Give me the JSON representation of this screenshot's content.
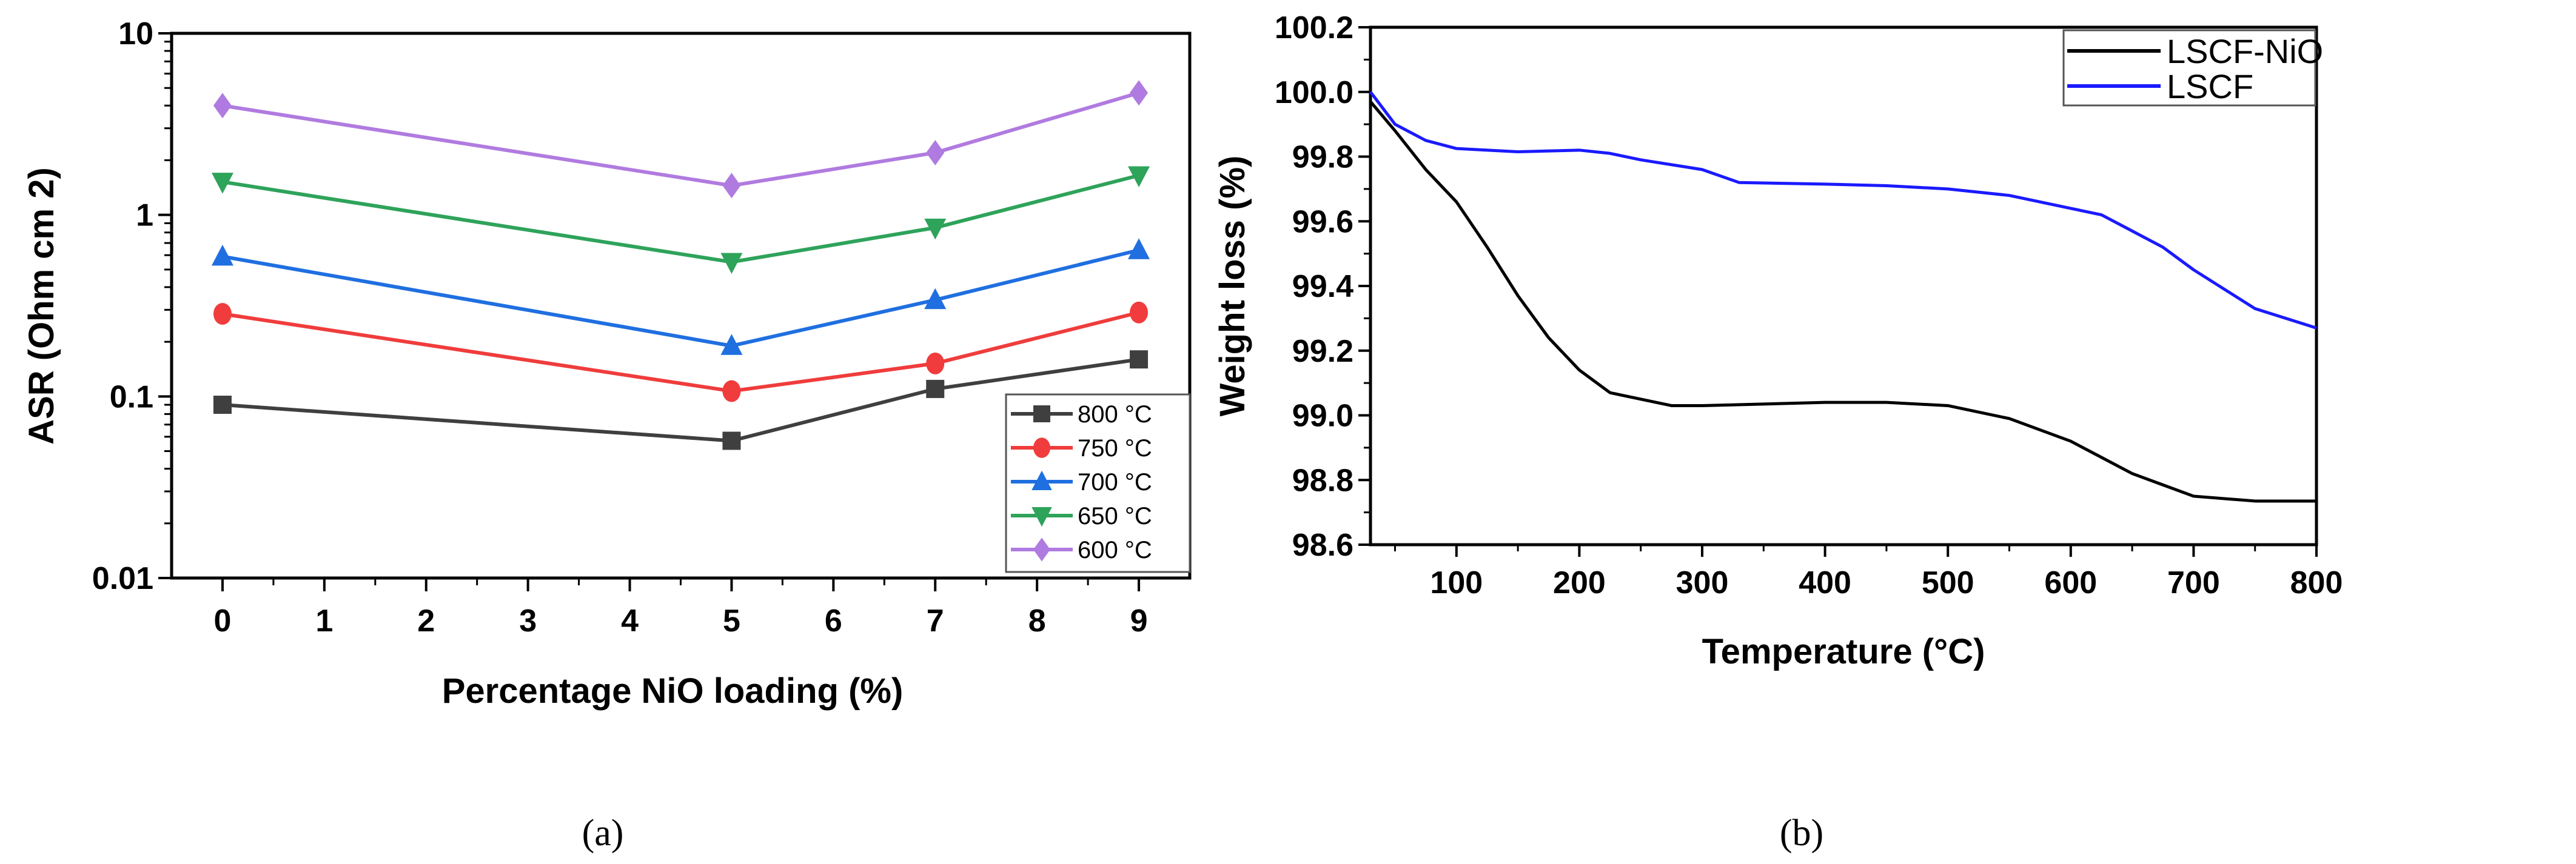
{
  "chart_data": [
    {
      "type": "line",
      "panel_label": "(a)",
      "title": "",
      "xlabel": "Percentage NiO loading (%)",
      "ylabel": "ASR (Ohm cm 2)",
      "yscale": "log",
      "xlim": [
        -0.5,
        9.5
      ],
      "ylim": [
        0.01,
        10
      ],
      "xticks": [
        "0",
        "1",
        "2",
        "3",
        "4",
        "5",
        "6",
        "7",
        "8",
        "9"
      ],
      "yticks": [
        "0.01",
        "0.1",
        "1",
        "10"
      ],
      "legend_position": "bottom-right",
      "x": [
        0,
        5,
        7,
        9
      ],
      "series": [
        {
          "name": "800 °C",
          "color": "#3f3f3f",
          "marker": "square",
          "values": [
            0.09,
            0.057,
            0.11,
            0.16
          ]
        },
        {
          "name": "750 °C",
          "color": "#f03c3c",
          "marker": "circle",
          "values": [
            0.285,
            0.107,
            0.152,
            0.29
          ]
        },
        {
          "name": "700 °C",
          "color": "#1f6fe0",
          "marker": "triangle-up",
          "values": [
            0.59,
            0.19,
            0.34,
            0.64
          ]
        },
        {
          "name": "650 °C",
          "color": "#2ea35a",
          "marker": "triangle-down",
          "values": [
            1.52,
            0.55,
            0.85,
            1.65
          ]
        },
        {
          "name": "600 °C",
          "color": "#b07be0",
          "marker": "diamond",
          "values": [
            4.0,
            1.45,
            2.2,
            4.7
          ]
        }
      ]
    },
    {
      "type": "line",
      "panel_label": "(b)",
      "title": "",
      "xlabel": "Temperature (°C)",
      "ylabel": "Weight loss (%)",
      "xlim": [
        30,
        800
      ],
      "ylim": [
        98.6,
        100.2
      ],
      "xticks": [
        "100",
        "200",
        "300",
        "400",
        "500",
        "600",
        "700",
        "800"
      ],
      "yticks": [
        "98.6",
        "98.8",
        "99.0",
        "99.2",
        "99.4",
        "99.6",
        "99.8",
        "100.0",
        "100.2"
      ],
      "legend_position": "top-right",
      "series": [
        {
          "name": "LSCF-NiO",
          "color": "#000000",
          "x": [
            30,
            50,
            75,
            100,
            125,
            150,
            175,
            200,
            225,
            250,
            275,
            300,
            350,
            400,
            450,
            500,
            550,
            600,
            625,
            650,
            700,
            750,
            800
          ],
          "y": [
            99.97,
            99.88,
            99.76,
            99.66,
            99.52,
            99.37,
            99.24,
            99.14,
            99.07,
            99.05,
            99.03,
            99.03,
            99.035,
            99.04,
            99.04,
            99.03,
            98.99,
            98.92,
            98.87,
            98.82,
            98.75,
            98.735,
            98.735
          ]
        },
        {
          "name": "LSCF",
          "color": "#1a1aff",
          "x": [
            30,
            50,
            75,
            100,
            150,
            200,
            225,
            250,
            300,
            330,
            400,
            450,
            500,
            550,
            600,
            625,
            650,
            675,
            700,
            750,
            800
          ],
          "y": [
            100.0,
            99.9,
            99.85,
            99.825,
            99.815,
            99.82,
            99.81,
            99.79,
            99.76,
            99.72,
            99.715,
            99.71,
            99.7,
            99.68,
            99.64,
            99.62,
            99.57,
            99.52,
            99.45,
            99.33,
            99.27
          ]
        }
      ]
    }
  ]
}
